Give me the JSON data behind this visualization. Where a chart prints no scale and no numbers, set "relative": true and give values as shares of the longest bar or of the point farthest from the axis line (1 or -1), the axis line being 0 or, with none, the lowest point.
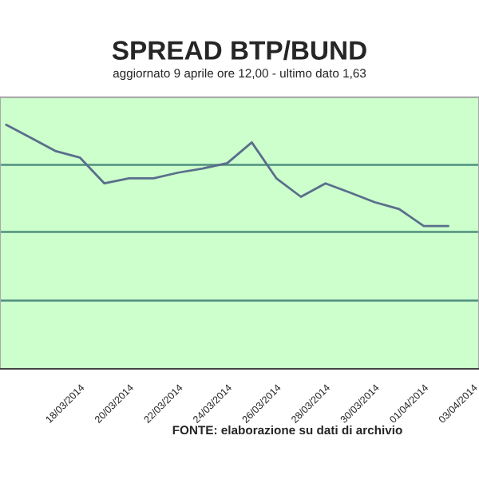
{
  "chart_data": {
    "type": "line",
    "title": "SPREAD BTP/BUND",
    "subtitle": "aggiornato 9 aprile ore 12,00 - ultimo dato 1,63",
    "categories": [
      null,
      null,
      null,
      "18/03/2014",
      null,
      "20/03/2014",
      null,
      "22/03/2014",
      null,
      "24/03/2014",
      null,
      "26/03/2014",
      null,
      "28/03/2014",
      null,
      "30/03/2014",
      null,
      "01/04/2014",
      null,
      "03/04/2014"
    ],
    "series": [
      {
        "color": "#5a6e8c",
        "values": [
          1.0,
          0.947,
          0.893,
          0.866,
          0.76,
          0.781,
          0.781,
          0.804,
          0.821,
          0.843,
          0.928,
          0.781,
          0.705,
          0.76,
          0.722,
          0.683,
          0.655,
          0.585,
          0.585,
          null
        ]
      }
    ],
    "relative": true,
    "marker": "none",
    "line_style": "solid",
    "ref_lines": [
      {
        "axis": "y",
        "value": 0.836,
        "color": "#4f8f7f"
      },
      {
        "axis": "y",
        "value": 0.561,
        "color": "#4f8f7f"
      },
      {
        "axis": "y",
        "value": 0.28,
        "color": "#4f8f7f"
      }
    ],
    "annotations": [
      "FONTE: elaborazione su dati di archivio"
    ]
  }
}
